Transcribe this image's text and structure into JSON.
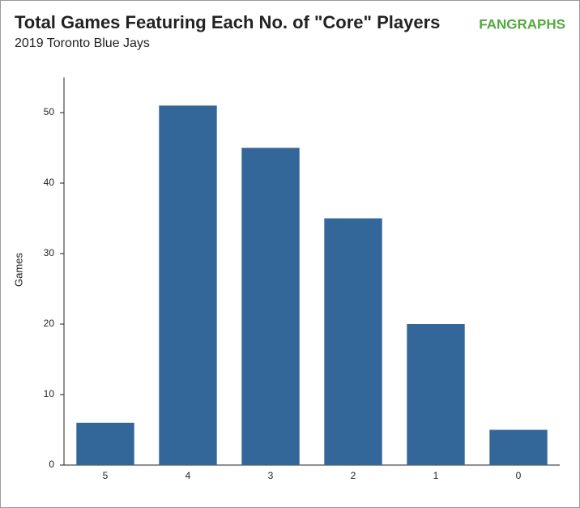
{
  "chart_data": {
    "type": "bar",
    "title": "Total Games Featuring Each No. of \"Core\" Players",
    "subtitle": "2019 Toronto Blue Jays",
    "logo": "FANGRAPHS",
    "y_label": "Games",
    "categories": [
      "5",
      "4",
      "3",
      "2",
      "1",
      "0"
    ],
    "values": [
      6,
      51,
      45,
      35,
      20,
      5
    ],
    "color": "#336699",
    "ylim": [
      0,
      55
    ],
    "yticks": [
      0,
      10,
      20,
      30,
      40,
      50
    ],
    "grid": false
  }
}
